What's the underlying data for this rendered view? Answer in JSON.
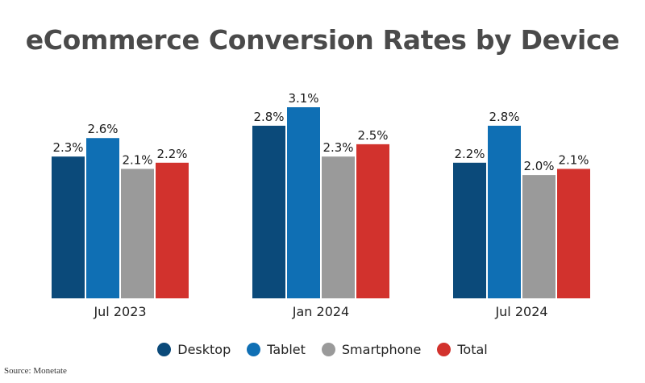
{
  "title": "eCommerce Conversion Rates by Device",
  "source": "Source: Monetate",
  "chart_data": {
    "type": "bar",
    "categories": [
      "Jul 2023",
      "Jan 2024",
      "Jul 2024"
    ],
    "series": [
      {
        "name": "Desktop",
        "values": [
          2.3,
          2.8,
          2.2
        ],
        "color": "#0b4a7a"
      },
      {
        "name": "Tablet",
        "values": [
          2.6,
          3.1,
          2.8
        ],
        "color": "#0f6fb4"
      },
      {
        "name": "Smartphone",
        "values": [
          2.1,
          2.3,
          2.0
        ],
        "color": "#9a9a9a"
      },
      {
        "name": "Total",
        "values": [
          2.2,
          2.5,
          2.1
        ],
        "color": "#d2322d"
      }
    ],
    "value_suffix": "%",
    "ylim": [
      0,
      3.1
    ],
    "grid": false,
    "legend_position": "bottom"
  }
}
